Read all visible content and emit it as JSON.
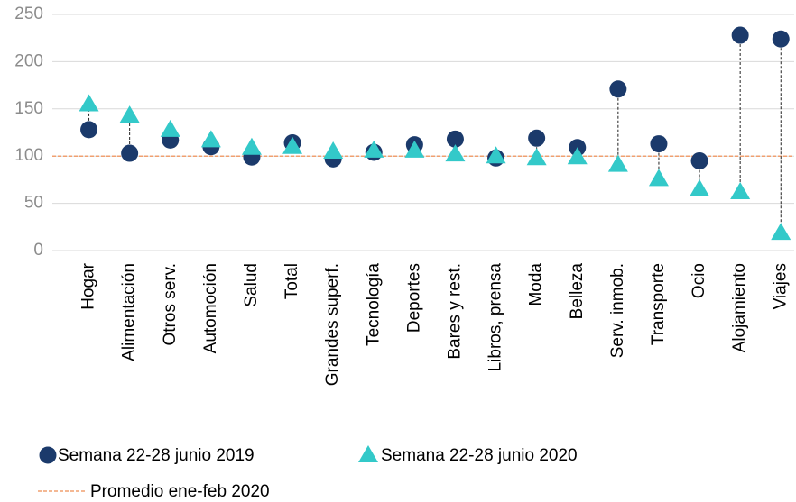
{
  "chart_data": {
    "type": "dot",
    "categories": [
      "Hogar",
      "Alimentación",
      "Otros serv.",
      "Automoción",
      "Salud",
      "Total",
      "Grandes superf.",
      "Tecnología",
      "Deportes",
      "Bares y rest.",
      "Libros, prensa",
      "Moda",
      "Belleza",
      "Serv. inmob.",
      "Transporte",
      "Ocio",
      "Alojamiento",
      "Viajes"
    ],
    "series": [
      {
        "name": "Semana 22-28 junio 2019",
        "color": "#1b3a6b",
        "marker": "circle",
        "values": [
          128,
          103,
          117,
          110,
          99,
          114,
          97,
          104,
          112,
          118,
          98,
          119,
          109,
          171,
          113,
          95,
          228,
          224
        ]
      },
      {
        "name": "Semana 22-28 junio 2020",
        "color": "#33c9c9",
        "marker": "triangle",
        "values": [
          155,
          143,
          128,
          117,
          109,
          110,
          105,
          106,
          106,
          102,
          100,
          98,
          99,
          91,
          76,
          65,
          62,
          19
        ]
      }
    ],
    "reference_line": {
      "name": "Promedio ene-feb 2020",
      "value": 100,
      "color": "#f0a070"
    },
    "ylim": [
      0,
      250
    ],
    "yticks": [
      0,
      50,
      100,
      150,
      200,
      250
    ],
    "grid": true,
    "legend": "bottom"
  }
}
